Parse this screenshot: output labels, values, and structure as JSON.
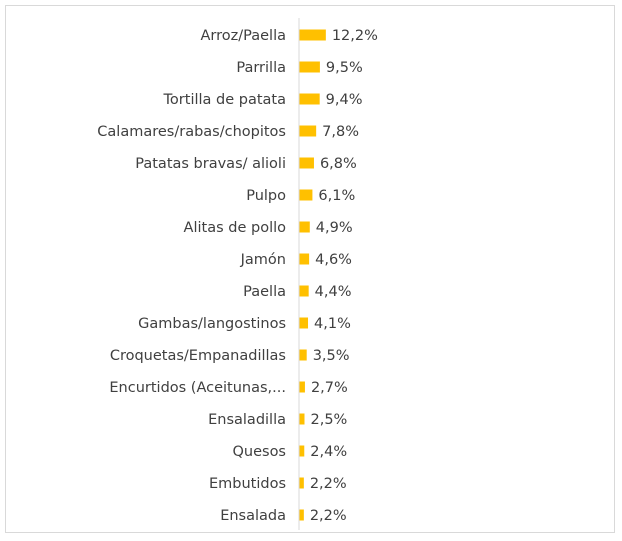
{
  "chart_data": {
    "type": "bar",
    "orientation": "horizontal",
    "categories": [
      "Arroz/Paella",
      "Parrilla",
      "Tortilla de patata",
      "Calamares/rabas/chopitos",
      "Patatas bravas/ alioli",
      "Pulpo",
      "Alitas de pollo",
      "Jamón",
      "Paella",
      "Gambas/langostinos",
      "Croquetas/Empanadillas",
      "Encurtidos (Aceitunas,...",
      "Ensaladilla",
      "Quesos",
      "Embutidos",
      "Ensalada"
    ],
    "values": [
      12.2,
      9.5,
      9.4,
      7.8,
      6.8,
      6.1,
      4.9,
      4.6,
      4.4,
      4.1,
      3.5,
      2.7,
      2.5,
      2.4,
      2.2,
      2.2
    ],
    "value_labels": [
      "12,2%",
      "9,5%",
      "9,4%",
      "7,8%",
      "6,8%",
      "6,1%",
      "4,9%",
      "4,6%",
      "4,4%",
      "4,1%",
      "3,5%",
      "2,7%",
      "2,5%",
      "2,4%",
      "2,2%",
      "2,2%"
    ],
    "bar_color": "#ffc000",
    "axis_color": "#d9d9d9",
    "grid": false,
    "legend": "none",
    "xlim": [
      0,
      100
    ]
  }
}
